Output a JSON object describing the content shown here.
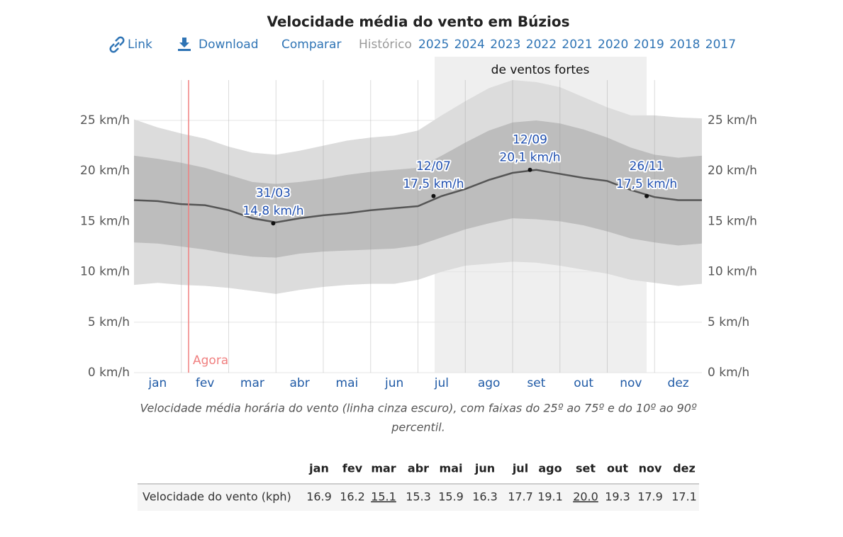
{
  "nav": {
    "link": "Link",
    "download": "Download",
    "compare": "Comparar",
    "history": "Histórico",
    "years": [
      "2025",
      "2024",
      "2023",
      "2022",
      "2021",
      "2020",
      "2019",
      "2018",
      "2017"
    ]
  },
  "chart_data": {
    "type": "line",
    "title": "Velocidade média do vento em Búzios",
    "categories": [
      null,
      "jan",
      null,
      "fev",
      null,
      "mar",
      null,
      "abr",
      null,
      "mai",
      null,
      "jun",
      null,
      "jul",
      null,
      "ago",
      null,
      "set",
      null,
      "out",
      null,
      "nov",
      null,
      "dez",
      null
    ],
    "bands": [
      {
        "color": "#dcdcdc",
        "low": [
          8.7,
          8.9,
          8.7,
          8.6,
          8.4,
          8.1,
          7.8,
          8.2,
          8.5,
          8.7,
          8.8,
          8.8,
          9.2,
          10.0,
          10.6,
          10.8,
          11.0,
          10.9,
          10.6,
          10.2,
          9.8,
          9.2,
          8.9,
          8.6,
          8.8
        ],
        "high": [
          25.1,
          24.3,
          23.7,
          23.2,
          22.4,
          21.8,
          21.6,
          22.0,
          22.5,
          23.0,
          23.3,
          23.5,
          24.0,
          25.5,
          26.9,
          28.2,
          29.0,
          28.8,
          28.3,
          27.3,
          26.3,
          25.5,
          25.5,
          25.3,
          25.2
        ]
      },
      {
        "color": "#bdbdbd",
        "low": [
          12.9,
          12.8,
          12.5,
          12.2,
          11.8,
          11.5,
          11.4,
          11.8,
          12.0,
          12.1,
          12.2,
          12.3,
          12.6,
          13.4,
          14.2,
          14.8,
          15.3,
          15.2,
          15.0,
          14.6,
          14.0,
          13.3,
          12.9,
          12.6,
          12.8
        ],
        "high": [
          21.5,
          21.2,
          20.8,
          20.3,
          19.6,
          18.9,
          18.7,
          18.9,
          19.2,
          19.6,
          19.9,
          20.1,
          20.3,
          21.5,
          22.8,
          24.0,
          24.8,
          25.0,
          24.7,
          24.1,
          23.3,
          22.3,
          21.6,
          21.3,
          21.5
        ]
      }
    ],
    "series": [
      {
        "color": "#555555",
        "values": [
          17.1,
          17.0,
          16.7,
          16.6,
          16.1,
          15.3,
          14.9,
          15.3,
          15.6,
          15.8,
          16.1,
          16.3,
          16.5,
          17.5,
          18.2,
          19.1,
          19.8,
          20.1,
          19.7,
          19.3,
          19.0,
          18.1,
          17.4,
          17.1,
          17.1
        ]
      }
    ],
    "annotations": [
      {
        "date": "31/03",
        "label": "14,8 km/h",
        "value": 14.8
      },
      {
        "date": "12/07",
        "label": "17,5 km/h",
        "value": 17.5
      },
      {
        "date": "12/09",
        "label": "20,1 km/h",
        "value": 20.1
      },
      {
        "date": "26/11",
        "label": "17,5 km/h",
        "value": 17.5
      }
    ],
    "now_label": "Agora",
    "highlight_label": "de ventos fortes",
    "ylim": [
      0,
      29
    ],
    "yticks": [
      {
        "value": 0,
        "label": "0 km/h"
      },
      {
        "value": 5,
        "label": "5 km/h"
      },
      {
        "value": 10,
        "label": "10 km/h"
      },
      {
        "value": 15,
        "label": "15 km/h"
      },
      {
        "value": 20,
        "label": "20 km/h"
      },
      {
        "value": 25,
        "label": "25 km/h"
      }
    ],
    "grid": true,
    "caption": [
      "Velocidade média horária do vento (linha cinza escuro), com faixas do 25º ao 75º e do 10º ao 90º",
      "percentil."
    ]
  },
  "table": {
    "columns": [
      "jan",
      "fev",
      "mar",
      "abr",
      "mai",
      "jun",
      "jul",
      "ago",
      "set",
      "out",
      "nov",
      "dez"
    ],
    "rows": [
      {
        "label": "Velocidade do vento (kph)",
        "values": [
          "16.9",
          "16.2",
          "15.1",
          "15.3",
          "15.9",
          "16.3",
          "17.7",
          "19.1",
          "20.0",
          "19.3",
          "17.9",
          "17.1"
        ],
        "underlined": [
          2,
          8
        ]
      }
    ]
  }
}
